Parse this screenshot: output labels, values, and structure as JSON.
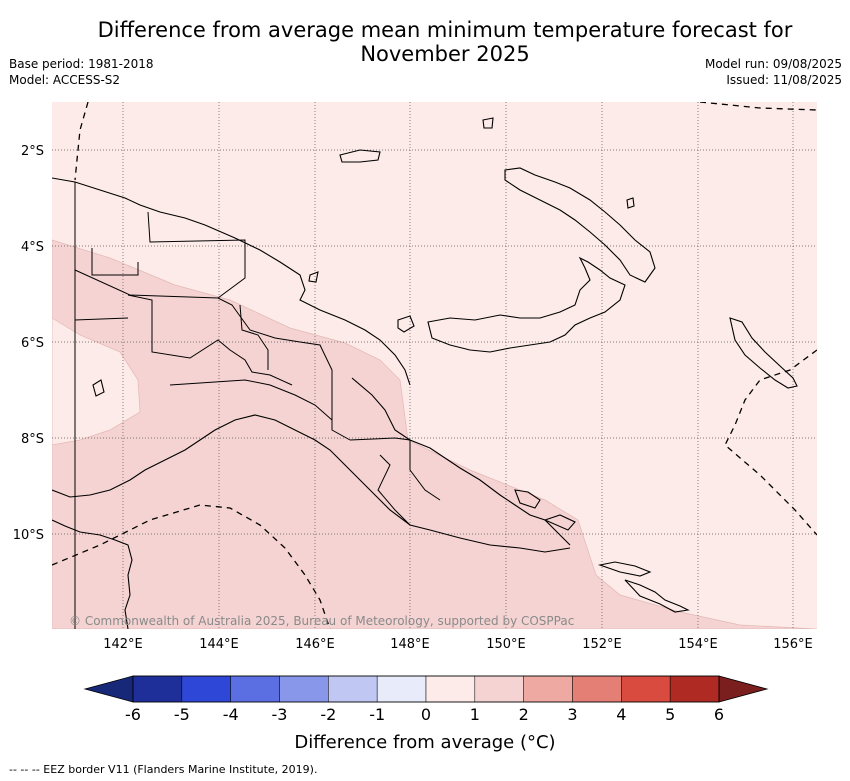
{
  "header": {
    "title_line1": "Difference from average mean minimum temperature forecast for",
    "title_line2": "November 2025",
    "base_period": "Base period: 1981-2018",
    "model": "Model: ACCESS-S2",
    "model_run": "Model run: 09/08/2025",
    "issued": "Issued: 11/08/2025"
  },
  "map": {
    "lat_labels": [
      "2°S",
      "4°S",
      "6°S",
      "8°S",
      "10°S"
    ],
    "lon_labels": [
      "142°E",
      "144°E",
      "146°E",
      "148°E",
      "150°E",
      "152°E",
      "154°E",
      "156°E"
    ],
    "copyright": "© Commonwealth of Australia 2025, Bureau of Meteorology, supported by COSPPac",
    "fill_colors": {
      "zero_to_one": "#fcebe8",
      "one_to_two": "#f4d3d2",
      "minus_one_to_zero": "#e8ecfa"
    }
  },
  "colorbar": {
    "ticks": [
      "-6",
      "-5",
      "-4",
      "-3",
      "-2",
      "-1",
      "0",
      "1",
      "2",
      "3",
      "4",
      "5",
      "6"
    ],
    "colors": [
      "#1e2f9a",
      "#2e47d6",
      "#5b6fe3",
      "#8997ea",
      "#c1c7f3",
      "#e8ecfa",
      "#fcebe8",
      "#f4d3d2",
      "#eeaaa2",
      "#e47f75",
      "#d94a3f",
      "#b02a24"
    ],
    "under_color": "#172878",
    "over_color": "#7a1e1e",
    "label": "Difference from average (°C)"
  },
  "footer": {
    "eez_note": "-- -- -- EEZ border V11 (Flanders Marine Institute, 2019)."
  }
}
